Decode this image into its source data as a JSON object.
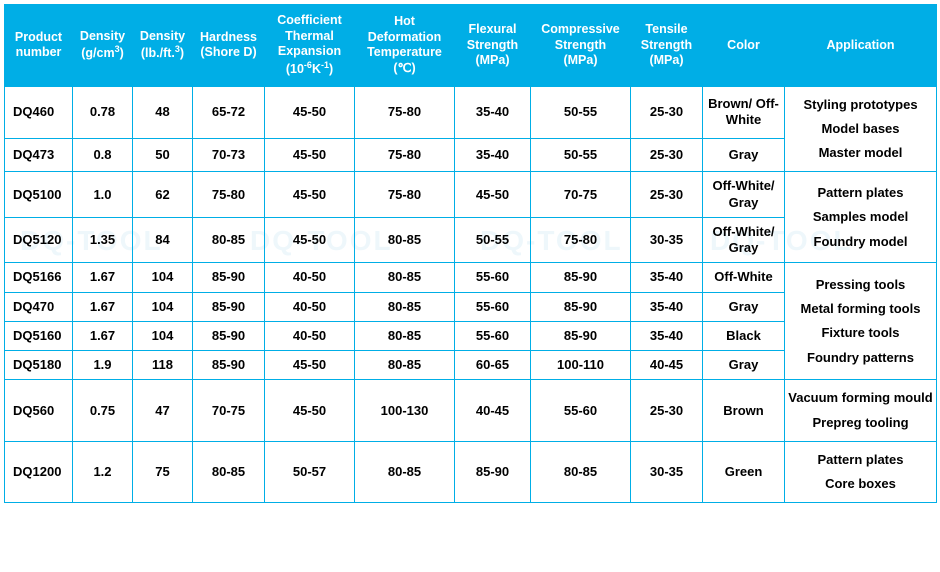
{
  "watermark": "DQ-TOOL",
  "theme": {
    "header_bg": "#00aee6",
    "header_fg": "#ffffff",
    "border": "#00aee6",
    "body_bg": "#ffffff",
    "text": "#000000",
    "watermark_color": "#eef7fb"
  },
  "headers": {
    "product_number": "Product number",
    "density_g": "Density (g/cm³)",
    "density_lb": "Density (lb./ft.³)",
    "hardness": "Hardness (Shore D)",
    "cte": "Coefficient Thermal Expansion (10⁻⁶K⁻¹)",
    "hot_deform": "Hot Deformation Temperature (℃)",
    "flexural": "Flexural Strength (MPa)",
    "compressive": "Compressive Strength (MPa)",
    "tensile": "Tensile Strength (MPa)",
    "color": "Color",
    "application": "Application"
  },
  "rows": [
    {
      "pn": "DQ460",
      "d_g": "0.78",
      "d_lb": "48",
      "hard": "65-72",
      "cte": "45-50",
      "hot": "75-80",
      "flex": "35-40",
      "comp": "50-55",
      "tens": "25-30",
      "color": "Brown/ Off-White"
    },
    {
      "pn": "DQ473",
      "d_g": "0.8",
      "d_lb": "50",
      "hard": "70-73",
      "cte": "45-50",
      "hot": "75-80",
      "flex": "35-40",
      "comp": "50-55",
      "tens": "25-30",
      "color": "Gray"
    },
    {
      "pn": "DQ5100",
      "d_g": "1.0",
      "d_lb": "62",
      "hard": "75-80",
      "cte": "45-50",
      "hot": "75-80",
      "flex": "45-50",
      "comp": "70-75",
      "tens": "25-30",
      "color": "Off-White/ Gray"
    },
    {
      "pn": "DQ5120",
      "d_g": "1.35",
      "d_lb": "84",
      "hard": "80-85",
      "cte": "45-50",
      "hot": "80-85",
      "flex": "50-55",
      "comp": "75-80",
      "tens": "30-35",
      "color": "Off-White/ Gray"
    },
    {
      "pn": "DQ5166",
      "d_g": "1.67",
      "d_lb": "104",
      "hard": "85-90",
      "cte": "40-50",
      "hot": "80-85",
      "flex": "55-60",
      "comp": "85-90",
      "tens": "35-40",
      "color": "Off-White"
    },
    {
      "pn": "DQ470",
      "d_g": "1.67",
      "d_lb": "104",
      "hard": "85-90",
      "cte": "40-50",
      "hot": "80-85",
      "flex": "55-60",
      "comp": "85-90",
      "tens": "35-40",
      "color": "Gray"
    },
    {
      "pn": "DQ5160",
      "d_g": "1.67",
      "d_lb": "104",
      "hard": "85-90",
      "cte": "40-50",
      "hot": "80-85",
      "flex": "55-60",
      "comp": "85-90",
      "tens": "35-40",
      "color": "Black"
    },
    {
      "pn": "DQ5180",
      "d_g": "1.9",
      "d_lb": "118",
      "hard": "85-90",
      "cte": "45-50",
      "hot": "80-85",
      "flex": "60-65",
      "comp": "100-110",
      "tens": "40-45",
      "color": "Gray"
    },
    {
      "pn": "DQ560",
      "d_g": "0.75",
      "d_lb": "47",
      "hard": "70-75",
      "cte": "45-50",
      "hot": "100-130",
      "flex": "40-45",
      "comp": "55-60",
      "tens": "25-30",
      "color": "Brown"
    },
    {
      "pn": "DQ1200",
      "d_g": "1.2",
      "d_lb": "75",
      "hard": "80-85",
      "cte": "50-57",
      "hot": "80-85",
      "flex": "85-90",
      "comp": "80-85",
      "tens": "30-35",
      "color": "Green"
    }
  ],
  "app_groups": [
    {
      "rowspan": 2,
      "lines": [
        "Styling prototypes",
        "Model bases",
        "Master model"
      ]
    },
    {
      "rowspan": 2,
      "lines": [
        "Pattern plates",
        "Samples model",
        "Foundry model"
      ]
    },
    {
      "rowspan": 4,
      "lines": [
        "Pressing tools",
        "Metal forming tools",
        "Fixture tools",
        "Foundry patterns"
      ]
    },
    {
      "rowspan": 1,
      "lines": [
        "Vacuum forming mould",
        "Prepreg tooling"
      ]
    },
    {
      "rowspan": 1,
      "lines": [
        "Pattern plates",
        "Core boxes"
      ]
    }
  ]
}
